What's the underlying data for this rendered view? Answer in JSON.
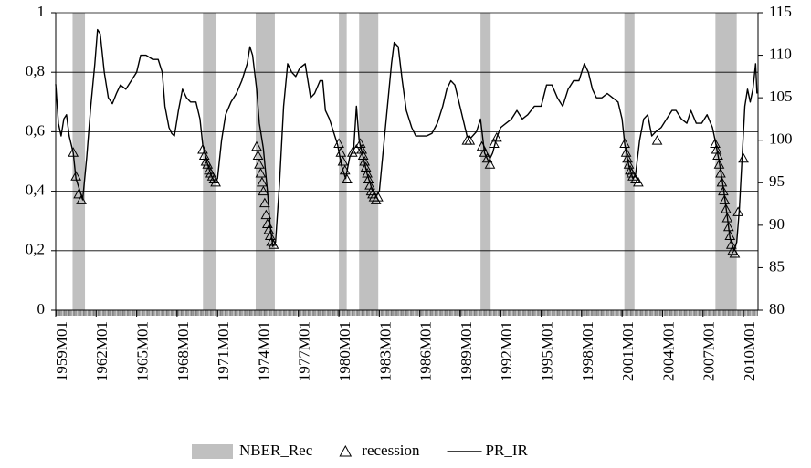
{
  "chart_data": {
    "type": "combo",
    "xlim": [
      1959,
      2011.08
    ],
    "xticks": [
      {
        "value": 1959,
        "label": "1959M01"
      },
      {
        "value": 1962,
        "label": "1962M01"
      },
      {
        "value": 1965,
        "label": "1965M01"
      },
      {
        "value": 1968,
        "label": "1968M01"
      },
      {
        "value": 1971,
        "label": "1971M01"
      },
      {
        "value": 1974,
        "label": "1974M01"
      },
      {
        "value": 1977,
        "label": "1977M01"
      },
      {
        "value": 1980,
        "label": "1980M01"
      },
      {
        "value": 1983,
        "label": "1983M01"
      },
      {
        "value": 1986,
        "label": "1986M01"
      },
      {
        "value": 1989,
        "label": "1989M01"
      },
      {
        "value": 1992,
        "label": "1992M01"
      },
      {
        "value": 1995,
        "label": "1995M01"
      },
      {
        "value": 1998,
        "label": "1998M01"
      },
      {
        "value": 2001,
        "label": "2001M01"
      },
      {
        "value": 2004,
        "label": "2004M01"
      },
      {
        "value": 2007,
        "label": "2007M01"
      },
      {
        "value": 2010,
        "label": "2010M01"
      }
    ],
    "ylim": [
      0,
      1
    ],
    "yticks": [
      0,
      {
        "value": 0.2,
        "label": "0,2"
      },
      {
        "value": 0.4,
        "label": "0,4"
      },
      {
        "value": 0.6,
        "label": "0,6"
      },
      {
        "value": 0.8,
        "label": "0,8"
      },
      1
    ],
    "y2lim": [
      80,
      115
    ],
    "y2ticks": [
      80,
      85,
      90,
      95,
      100,
      105,
      110,
      115
    ],
    "grid": true,
    "legend": "bottom",
    "series": [
      {
        "name": "NBER_Rec",
        "kind": "band",
        "color": "#c0c0c0",
        "x_start": [
          1960.25,
          1969.92,
          1973.83,
          1980.0,
          1981.5,
          1990.5,
          2001.17,
          2007.92
        ],
        "x_end": [
          1961.17,
          1970.92,
          1975.25,
          1980.58,
          1982.92,
          1991.25,
          2001.92,
          2009.5
        ],
        "values": [
          1,
          1,
          1,
          1,
          1,
          1,
          1,
          1
        ]
      },
      {
        "name": "recession",
        "kind": "marker",
        "color": "#000000",
        "x": [
          1960.3,
          1960.5,
          1960.7,
          1960.9,
          1969.9,
          1970.02,
          1970.14,
          1970.26,
          1970.38,
          1970.5,
          1970.62,
          1970.74,
          1970.86,
          1973.9,
          1974.0,
          1974.1,
          1974.2,
          1974.3,
          1974.4,
          1974.5,
          1974.6,
          1974.7,
          1974.8,
          1974.9,
          1975.0,
          1975.15,
          1980.0,
          1980.15,
          1980.3,
          1980.45,
          1980.6,
          1981.0,
          1981.3,
          1981.6,
          1981.7,
          1981.8,
          1981.9,
          1982.0,
          1982.1,
          1982.2,
          1982.3,
          1982.4,
          1982.5,
          1982.6,
          1982.75,
          1982.9,
          1989.5,
          1989.7,
          1990.6,
          1990.8,
          1991.0,
          1991.2,
          1991.5,
          1991.7,
          2001.2,
          2001.3,
          2001.4,
          2001.5,
          2001.6,
          2001.7,
          2001.8,
          2002.0,
          2002.2,
          2003.6,
          2007.9,
          2008.0,
          2008.1,
          2008.2,
          2008.3,
          2008.4,
          2008.5,
          2008.6,
          2008.7,
          2008.8,
          2008.9,
          2009.0,
          2009.1,
          2009.2,
          2009.35,
          2009.6,
          2010.0
        ],
        "values": [
          0.53,
          0.45,
          0.39,
          0.37,
          0.54,
          0.52,
          0.5,
          0.49,
          0.47,
          0.46,
          0.45,
          0.44,
          0.43,
          0.55,
          0.52,
          0.49,
          0.46,
          0.43,
          0.4,
          0.36,
          0.32,
          0.29,
          0.27,
          0.25,
          0.23,
          0.22,
          0.56,
          0.53,
          0.5,
          0.47,
          0.44,
          0.53,
          0.54,
          0.56,
          0.54,
          0.52,
          0.5,
          0.48,
          0.46,
          0.44,
          0.42,
          0.4,
          0.39,
          0.38,
          0.37,
          0.38,
          0.57,
          0.57,
          0.55,
          0.53,
          0.51,
          0.49,
          0.56,
          0.58,
          0.56,
          0.53,
          0.51,
          0.49,
          0.47,
          0.46,
          0.45,
          0.44,
          0.43,
          0.57,
          0.56,
          0.54,
          0.52,
          0.49,
          0.46,
          0.43,
          0.4,
          0.37,
          0.34,
          0.31,
          0.28,
          0.25,
          0.22,
          0.2,
          0.19,
          0.33,
          0.51
        ]
      },
      {
        "name": "PR_IR",
        "kind": "line",
        "axis": "y2",
        "color": "#000000",
        "x": [
          1959.0,
          1959.2,
          1959.4,
          1959.6,
          1959.8,
          1960.0,
          1960.3,
          1960.5,
          1960.8,
          1961.0,
          1961.3,
          1961.6,
          1961.9,
          1962.1,
          1962.3,
          1962.6,
          1962.9,
          1963.2,
          1963.5,
          1963.8,
          1964.2,
          1964.6,
          1965.0,
          1965.3,
          1965.7,
          1966.2,
          1966.6,
          1966.9,
          1967.1,
          1967.4,
          1967.6,
          1967.8,
          1968.1,
          1968.4,
          1968.7,
          1969.0,
          1969.4,
          1969.7,
          1969.9,
          1970.2,
          1970.5,
          1970.8,
          1971.0,
          1971.3,
          1971.6,
          1972.0,
          1972.4,
          1972.8,
          1973.2,
          1973.4,
          1973.6,
          1973.9,
          1974.1,
          1974.4,
          1974.7,
          1974.9,
          1975.1,
          1975.3,
          1975.6,
          1975.9,
          1976.2,
          1976.5,
          1976.8,
          1977.1,
          1977.5,
          1977.7,
          1977.9,
          1978.2,
          1978.6,
          1978.8,
          1979.0,
          1979.3,
          1979.6,
          1979.9,
          1980.2,
          1980.5,
          1980.8,
          1981.1,
          1981.3,
          1981.5,
          1981.8,
          1982.1,
          1982.5,
          1982.8,
          1983.0,
          1983.3,
          1983.6,
          1983.9,
          1984.1,
          1984.4,
          1984.7,
          1985.0,
          1985.4,
          1985.7,
          1986.0,
          1986.5,
          1986.9,
          1987.3,
          1987.7,
          1988.0,
          1988.3,
          1988.6,
          1988.9,
          1989.2,
          1989.5,
          1989.8,
          1990.2,
          1990.5,
          1990.8,
          1991.1,
          1991.4,
          1991.7,
          1992.0,
          1992.4,
          1992.8,
          1993.2,
          1993.6,
          1994.0,
          1994.5,
          1995.0,
          1995.4,
          1995.8,
          1996.2,
          1996.6,
          1997.0,
          1997.4,
          1997.8,
          1998.2,
          1998.5,
          1998.8,
          1999.1,
          1999.5,
          1999.9,
          2000.3,
          2000.7,
          2001.0,
          2001.2,
          2001.5,
          2001.8,
          2002.0,
          2002.3,
          2002.6,
          2002.9,
          2003.2,
          2003.5,
          2003.9,
          2004.3,
          2004.7,
          2005.0,
          2005.4,
          2005.8,
          2006.1,
          2006.5,
          2006.9,
          2007.3,
          2007.7,
          2007.9,
          2008.2,
          2008.5,
          2008.8,
          2009.0,
          2009.3,
          2009.5,
          2009.7,
          2009.9,
          2010.1,
          2010.3,
          2010.5,
          2010.7,
          2010.9,
          2011.0
        ],
        "values": [
          106.6,
          102,
          100.5,
          102.5,
          103,
          100.5,
          98.5,
          95.5,
          94,
          93,
          98,
          104,
          109,
          113,
          112.5,
          108,
          105,
          104.3,
          105.5,
          106.5,
          106,
          107,
          108,
          110,
          110,
          109.5,
          109.5,
          108,
          104,
          101.5,
          100.8,
          100.5,
          103.5,
          106,
          105,
          104.5,
          104.5,
          102.5,
          99.5,
          97.5,
          96,
          95,
          95.5,
          100,
          103,
          104.5,
          105.5,
          107,
          109,
          111,
          110,
          106,
          102,
          99,
          94,
          90,
          87.5,
          88,
          95,
          104,
          109,
          108,
          107.5,
          108.5,
          109,
          107,
          105,
          105.5,
          107,
          107,
          103.5,
          102.5,
          101,
          99.5,
          97,
          95.5,
          98,
          99,
          104,
          100,
          98,
          96,
          94,
          93.5,
          94,
          99,
          104,
          109,
          111.5,
          111,
          107,
          103.5,
          101.5,
          100.5,
          100.5,
          100.5,
          100.8,
          102,
          104,
          106,
          107,
          106.5,
          104.5,
          102.5,
          100.5,
          100.3,
          101,
          102.5,
          98.5,
          97.5,
          98.5,
          100.3,
          101.5,
          102,
          102.5,
          103.5,
          102.5,
          103,
          104,
          104,
          106.5,
          106.5,
          105,
          104,
          106,
          107,
          107,
          109,
          108,
          106,
          105,
          105,
          105.5,
          105,
          104.5,
          102.5,
          99.5,
          97,
          95.5,
          96,
          100,
          102.5,
          103,
          100.5,
          101,
          101.5,
          102.5,
          103.5,
          103.5,
          102.5,
          102,
          103.5,
          102,
          102,
          103,
          101.5,
          100,
          97.5,
          94.5,
          91,
          88.5,
          87,
          88,
          92,
          98,
          104,
          106,
          104.5,
          106,
          109,
          105.5
        ]
      }
    ]
  }
}
